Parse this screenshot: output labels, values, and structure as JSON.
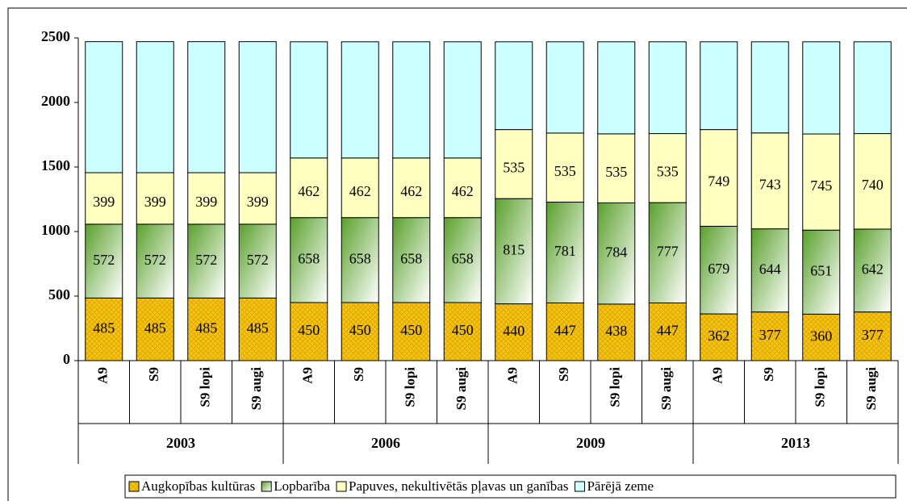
{
  "chart_data": {
    "type": "stacked_bar",
    "categories": [
      "A9",
      "S9",
      "S9 lopi",
      "S9 augi",
      "A9",
      "S9",
      "S9 lopi",
      "S9 augi",
      "A9",
      "S9",
      "S9 lopi",
      "S9 augi",
      "A9",
      "S9",
      "S9 lopi",
      "S9 augi"
    ],
    "groups": [
      "2003",
      "2006",
      "2009",
      "2013"
    ],
    "series": [
      {
        "name": "Augkopības kultūras",
        "color": "#f5c518",
        "values": [
          485,
          485,
          485,
          485,
          450,
          450,
          450,
          450,
          440,
          447,
          438,
          447,
          362,
          377,
          360,
          377
        ]
      },
      {
        "name": "Lopbarība",
        "color": "#5aa02c",
        "values": [
          572,
          572,
          572,
          572,
          658,
          658,
          658,
          658,
          815,
          781,
          784,
          777,
          679,
          644,
          651,
          642
        ]
      },
      {
        "name": "Papuves, nekultivētās pļavas un ganības",
        "color": "#ffffc0",
        "values": [
          399,
          399,
          399,
          399,
          462,
          462,
          462,
          462,
          535,
          535,
          535,
          535,
          749,
          743,
          745,
          740
        ]
      },
      {
        "name": "Pārējā zeme",
        "color": "#ccffff",
        "values": [
          1015,
          1015,
          1015,
          1015,
          900,
          900,
          900,
          900,
          680,
          707,
          713,
          711,
          680,
          706,
          714,
          711
        ]
      }
    ],
    "labeled_series": [
      "Augkopības kultūras",
      "Lopbarība",
      "Papuves, nekultivētās pļavas un ganības"
    ],
    "ylim": [
      0,
      2500
    ],
    "yticks": [
      0,
      500,
      1000,
      1500,
      2000,
      2500
    ]
  }
}
